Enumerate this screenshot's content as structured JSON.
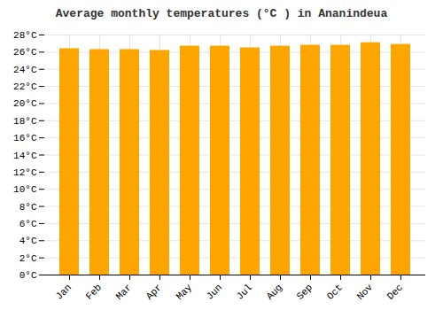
{
  "chart_data": {
    "type": "bar",
    "title": "Average monthly temperatures (°C ) in Ananindeua",
    "categories": [
      "Jan",
      "Feb",
      "Mar",
      "Apr",
      "May",
      "Jun",
      "Jul",
      "Aug",
      "Sep",
      "Oct",
      "Nov",
      "Dec"
    ],
    "values": [
      26.4,
      26.3,
      26.3,
      26.2,
      26.7,
      26.7,
      26.5,
      26.7,
      26.8,
      26.8,
      27.1,
      26.9
    ],
    "color": "#FFA500",
    "ylim": [
      0,
      28
    ],
    "yticks": [
      {
        "value": 0,
        "label": "0°C"
      },
      {
        "value": 2,
        "label": "2°C"
      },
      {
        "value": 4,
        "label": "4°C"
      },
      {
        "value": 6,
        "label": "6°C"
      },
      {
        "value": 8,
        "label": "8°C"
      },
      {
        "value": 10,
        "label": "10°C"
      },
      {
        "value": 12,
        "label": "12°C"
      },
      {
        "value": 14,
        "label": "14°C"
      },
      {
        "value": 16,
        "label": "16°C"
      },
      {
        "value": 18,
        "label": "18°C"
      },
      {
        "value": 20,
        "label": "20°C"
      },
      {
        "value": 22,
        "label": "22°C"
      },
      {
        "value": 24,
        "label": "24°C"
      },
      {
        "value": 26,
        "label": "26°C"
      },
      {
        "value": 28,
        "label": "28°C"
      }
    ],
    "grid": true
  }
}
